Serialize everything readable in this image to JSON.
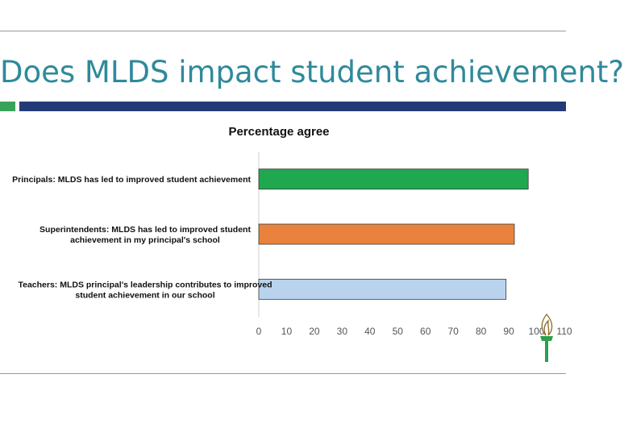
{
  "slide": {
    "title": "Does MLDS impact student achievement?"
  },
  "colors": {
    "title": "#2e8a9a",
    "band_blue": "#233a78",
    "band_green": "#3aa35a"
  },
  "icons": {
    "logo": "torch-icon"
  },
  "chart_data": {
    "type": "bar",
    "orientation": "horizontal",
    "title": "Percentage agree",
    "categories": [
      [
        "Principals: MLDS has led to improved student achievement"
      ],
      [
        "Superintendents: MLDS has led to improved student",
        "achievement in my principal's school"
      ],
      [
        "Teachers: MLDS principal's leadership contributes to improved",
        "student achievement in our school"
      ]
    ],
    "values": [
      97,
      92,
      89
    ],
    "colors": [
      "#1fa84f",
      "#e8823c",
      "#b9d3ef"
    ],
    "xlim": [
      0,
      110
    ],
    "xticks": [
      "0",
      "10",
      "20",
      "30",
      "40",
      "50",
      "60",
      "70",
      "80",
      "90",
      "100",
      "110"
    ],
    "xlabel": "",
    "ylabel": "",
    "grid": true
  }
}
